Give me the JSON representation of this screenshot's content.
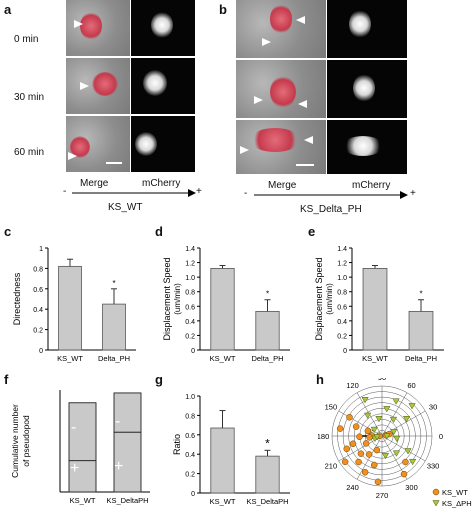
{
  "panels": {
    "a": {
      "label": "a",
      "times": [
        "0 min",
        "30 min",
        "60 min"
      ],
      "col1": "Merge",
      "col2": "mCherry",
      "minus": "-",
      "plus": "+",
      "condition": "KS_WT"
    },
    "b": {
      "label": "b",
      "col1": "Merge",
      "col2": "mCherry",
      "minus": "-",
      "plus": "+",
      "condition": "KS_Delta_PH"
    },
    "c": {
      "label": "c"
    },
    "d": {
      "label": "d"
    },
    "e": {
      "label": "e"
    },
    "f": {
      "label": "f",
      "minus": "-",
      "plus": "+"
    },
    "g": {
      "label": "g",
      "star": "*"
    },
    "h": {
      "label": "h"
    }
  },
  "chart_data": [
    {
      "id": "c",
      "type": "bar",
      "categories": [
        "KS_WT",
        "Delta_PH"
      ],
      "values": [
        0.82,
        0.45
      ],
      "errors": [
        0.07,
        0.15
      ],
      "ylabel": "Directedness",
      "ylim": [
        0,
        1.0
      ],
      "yticks": [
        "0",
        "0.2",
        "0.4",
        "0.6",
        "0.8",
        "1"
      ],
      "significance": [
        "",
        "*"
      ]
    },
    {
      "id": "d",
      "type": "bar",
      "categories": [
        "KS_WT",
        "Delta_PH"
      ],
      "values": [
        1.12,
        0.53
      ],
      "errors": [
        0.04,
        0.16
      ],
      "ylabel": "Displacement Speed",
      "yunit": "(um/min)",
      "ylim": [
        0,
        1.4
      ],
      "yticks": [
        "0",
        "0.2",
        "0.4",
        "0.6",
        "0.8",
        "1.0",
        "1.2",
        "1.4"
      ],
      "significance": [
        "",
        "*"
      ]
    },
    {
      "id": "e",
      "type": "bar",
      "categories": [
        "KS_WT",
        "Delta_PH"
      ],
      "values": [
        1.12,
        0.53
      ],
      "errors": [
        0.04,
        0.16
      ],
      "ylabel": "Displacement Speed",
      "yunit": "(um/min)",
      "ylim": [
        0,
        1.4
      ],
      "yticks": [
        "0",
        "0.2",
        "0.4",
        "0.6",
        "0.8",
        "1.0",
        "1.2",
        "1.4"
      ],
      "significance": [
        "",
        "*"
      ]
    },
    {
      "id": "f",
      "type": "bar",
      "stacked": true,
      "categories": [
        "KS_WT",
        "KS_DeltaPH"
      ],
      "series": [
        {
          "values": [
            160,
            305
          ]
        },
        {
          "values": [
            295,
            200
          ]
        }
      ],
      "ylabel": "Cumulative number of pseudopod",
      "ylim": [
        0,
        520
      ]
    },
    {
      "id": "g",
      "type": "bar",
      "categories": [
        "KS_WT",
        "KS_DeltaPH"
      ],
      "values": [
        0.67,
        0.38
      ],
      "errors": [
        0.18,
        0.06
      ],
      "ylabel": "Ratio",
      "ylim": [
        0,
        1.0
      ],
      "yticks": [
        "0",
        "0.2",
        "0.4",
        "0.6",
        "0.8",
        "1.0"
      ],
      "significance": [
        "",
        "*"
      ]
    },
    {
      "id": "h",
      "type": "scatter",
      "polar": true,
      "angle_ticks": [
        "0",
        "30",
        "60",
        "90",
        "120",
        "150",
        "180",
        "210",
        "240",
        "270",
        "300",
        "330"
      ],
      "series": [
        {
          "name": "KS_WT",
          "color": "#f0901e",
          "marker": "circle",
          "points": [
            [
              150,
              0.75
            ],
            [
              160,
              0.55
            ],
            [
              170,
              0.85
            ],
            [
              178,
              0.2
            ],
            [
              182,
              0.45
            ],
            [
              186,
              0.25
            ],
            [
              195,
              0.6
            ],
            [
              200,
              0.75
            ],
            [
              205,
              0.35
            ],
            [
              215,
              0.9
            ],
            [
              220,
              0.55
            ],
            [
              228,
              0.7
            ],
            [
              235,
              0.45
            ],
            [
              245,
              0.8
            ],
            [
              250,
              0.3
            ],
            [
              255,
              0.6
            ],
            [
              265,
              0.92
            ],
            [
              300,
              0.88
            ],
            [
              312,
              0.7
            ],
            [
              10,
              0.08
            ],
            [
              15,
              0.15
            ],
            [
              175,
              0.05
            ],
            [
              160,
              0.3
            ]
          ]
        },
        {
          "name": "KS_ΔPH",
          "color": "#a9c73a",
          "marker": "triangle",
          "points": [
            [
              20,
              0.25
            ],
            [
              35,
              0.6
            ],
            [
              45,
              0.85
            ],
            [
              55,
              0.4
            ],
            [
              68,
              0.75
            ],
            [
              80,
              0.55
            ],
            [
              100,
              0.35
            ],
            [
              115,
              0.8
            ],
            [
              125,
              0.5
            ],
            [
              140,
              0.2
            ],
            [
              0,
              0.1
            ],
            [
              350,
              0.3
            ],
            [
              330,
              0.6
            ],
            [
              320,
              0.8
            ],
            [
              310,
              0.45
            ],
            [
              280,
              0.4
            ],
            [
              200,
              0.15
            ],
            [
              190,
              0.1
            ]
          ]
        }
      ]
    }
  ]
}
